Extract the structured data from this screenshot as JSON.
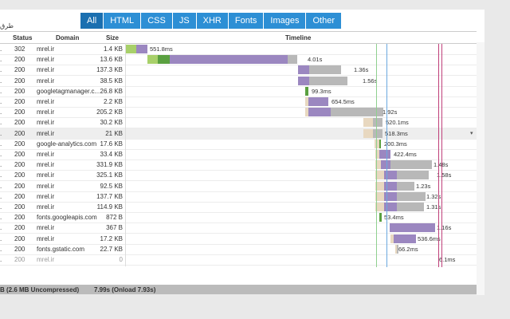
{
  "tabs": [
    {
      "label": "All",
      "active": true
    },
    {
      "label": "HTML",
      "active": false
    },
    {
      "label": "CSS",
      "active": false
    },
    {
      "label": "JS",
      "active": false
    },
    {
      "label": "XHR",
      "active": false
    },
    {
      "label": "Fonts",
      "active": false
    },
    {
      "label": "Images",
      "active": false
    },
    {
      "label": "Other",
      "active": false
    }
  ],
  "top_label": "طرق",
  "headers": {
    "status": "Status",
    "domain": "Domain",
    "size": "Size",
    "timeline": "Timeline"
  },
  "rows": [
    {
      "status": "302",
      "domain": "mrel.ir",
      "size": "1.4 KB",
      "time": "551.8ms",
      "dim": false,
      "hl": false
    },
    {
      "status": "200",
      "domain": "mrel.ir",
      "size": "13.6 KB",
      "time": "4.01s",
      "dim": false,
      "hl": false
    },
    {
      "status": "200",
      "domain": "mrel.ir",
      "size": "137.3 KB",
      "time": "1.36s",
      "dim": false,
      "hl": false
    },
    {
      "status": "200",
      "domain": "mrel.ir",
      "size": "38.5 KB",
      "time": "1.56s",
      "dim": false,
      "hl": false
    },
    {
      "status": "200",
      "domain": "googletagmanager.c...",
      "size": "26.8 KB",
      "time": "99.3ms",
      "dim": false,
      "hl": false
    },
    {
      "status": "200",
      "domain": "mrel.ir",
      "size": "2.2 KB",
      "time": "654.5ms",
      "dim": false,
      "hl": false
    },
    {
      "status": "200",
      "domain": "mrel.ir",
      "size": "205.2 KB",
      "time": "1.92s",
      "dim": false,
      "hl": false
    },
    {
      "status": "200",
      "domain": "mrel.ir",
      "size": "30.2 KB",
      "time": "520.1ms",
      "dim": false,
      "hl": false
    },
    {
      "status": "200",
      "domain": "mrel.ir",
      "size": "21 KB",
      "time": "518.3ms",
      "dim": false,
      "hl": true
    },
    {
      "status": "200",
      "domain": "google-analytics.com",
      "size": "17.6 KB",
      "time": "200.3ms",
      "dim": false,
      "hl": false
    },
    {
      "status": "200",
      "domain": "mrel.ir",
      "size": "33.4 KB",
      "time": "422.4ms",
      "dim": false,
      "hl": false
    },
    {
      "status": "200",
      "domain": "mrel.ir",
      "size": "331.9 KB",
      "time": "1.48s",
      "dim": false,
      "hl": false
    },
    {
      "status": "200",
      "domain": "mrel.ir",
      "size": "325.1 KB",
      "time": "1.58s",
      "dim": false,
      "hl": false
    },
    {
      "status": "200",
      "domain": "mrel.ir",
      "size": "92.5 KB",
      "time": "1.23s",
      "dim": false,
      "hl": false
    },
    {
      "status": "200",
      "domain": "mrel.ir",
      "size": "137.7 KB",
      "time": "1.32s",
      "dim": false,
      "hl": false
    },
    {
      "status": "200",
      "domain": "mrel.ir",
      "size": "114.9 KB",
      "time": "1.31s",
      "dim": false,
      "hl": false
    },
    {
      "status": "200",
      "domain": "fonts.googleapis.com",
      "size": "872 B",
      "time": "53.4ms",
      "dim": false,
      "hl": false
    },
    {
      "status": "200",
      "domain": "mrel.ir",
      "size": "367 B",
      "time": "1.16s",
      "dim": false,
      "hl": false
    },
    {
      "status": "200",
      "domain": "mrel.ir",
      "size": "17.2 KB",
      "time": "536.6ms",
      "dim": false,
      "hl": false
    },
    {
      "status": "200",
      "domain": "fonts.gstatic.com",
      "size": "22.7 KB",
      "time": "66.2ms",
      "dim": false,
      "hl": false
    },
    {
      "status": "200",
      "domain": "mrel.ir",
      "size": "0",
      "time": "6.1ms",
      "dim": true,
      "hl": false
    }
  ],
  "footer": {
    "transferred": "B (2.6 MB Uncompressed)",
    "load": "7.99s (Onload 7.93s)"
  },
  "colors": {
    "tab": "#2d8fd5",
    "tab_active": "#1a6fb0",
    "waiting": "#9b87c0",
    "receiving": "#b8b8b8",
    "blocked": "#e8d8c0",
    "connect": "#a8d06a",
    "dns": "#5aa040",
    "dom_line": "#8fd08f",
    "load_line": "#c0407a",
    "first_line": "#6aa8e0"
  }
}
